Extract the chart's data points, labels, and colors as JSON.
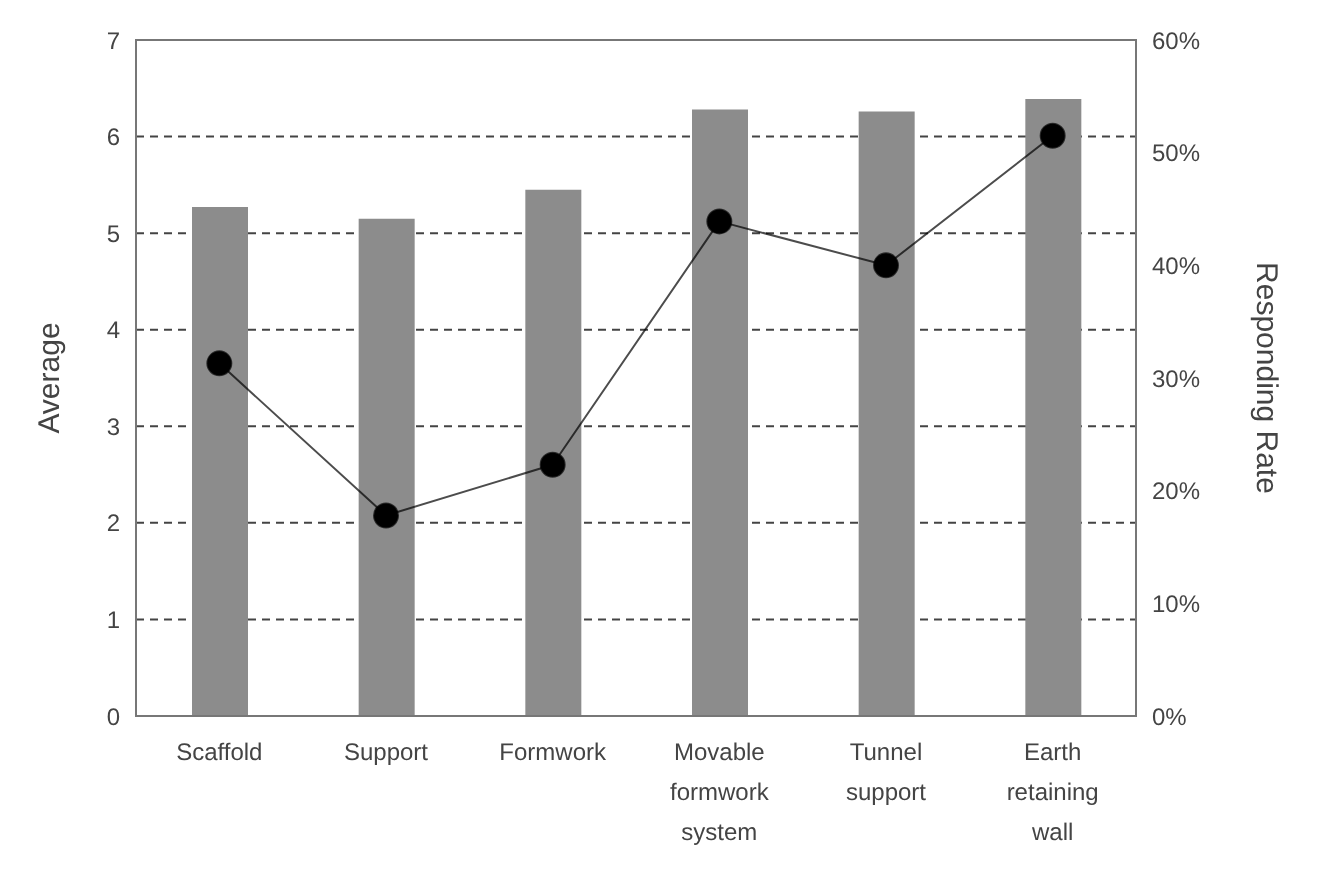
{
  "chart_data": {
    "type": "bar",
    "categories": [
      "Scaffold",
      "Support",
      "Formwork",
      "Movable formwork system",
      "Tunnel support",
      "Earth retaining wall"
    ],
    "series": [
      {
        "color": "#8c8c8c",
        "values": [
          5.27,
          5.15,
          5.45,
          6.28,
          6.26,
          6.39
        ]
      },
      {
        "type": "line",
        "axis": "y2",
        "color": "#000000",
        "values": [
          31.3,
          17.8,
          22.3,
          43.9,
          40.0,
          51.5
        ]
      }
    ],
    "ylabel": "Average",
    "y2label": "Responding Rate",
    "ylim": [
      0,
      7
    ],
    "yticks": [
      0,
      1,
      2,
      3,
      4,
      5,
      6,
      7
    ],
    "y2lim": [
      0,
      60
    ],
    "y2ticks": [
      {
        "value": 0,
        "label": "0%"
      },
      {
        "value": 10,
        "label": "10%"
      },
      {
        "value": 20,
        "label": "20%"
      },
      {
        "value": 30,
        "label": "30%"
      },
      {
        "value": 40,
        "label": "40%"
      },
      {
        "value": 50,
        "label": "50%"
      },
      {
        "value": 60,
        "label": "60%"
      }
    ],
    "grid": "y",
    "marker": "circle",
    "line_style": "solid"
  }
}
